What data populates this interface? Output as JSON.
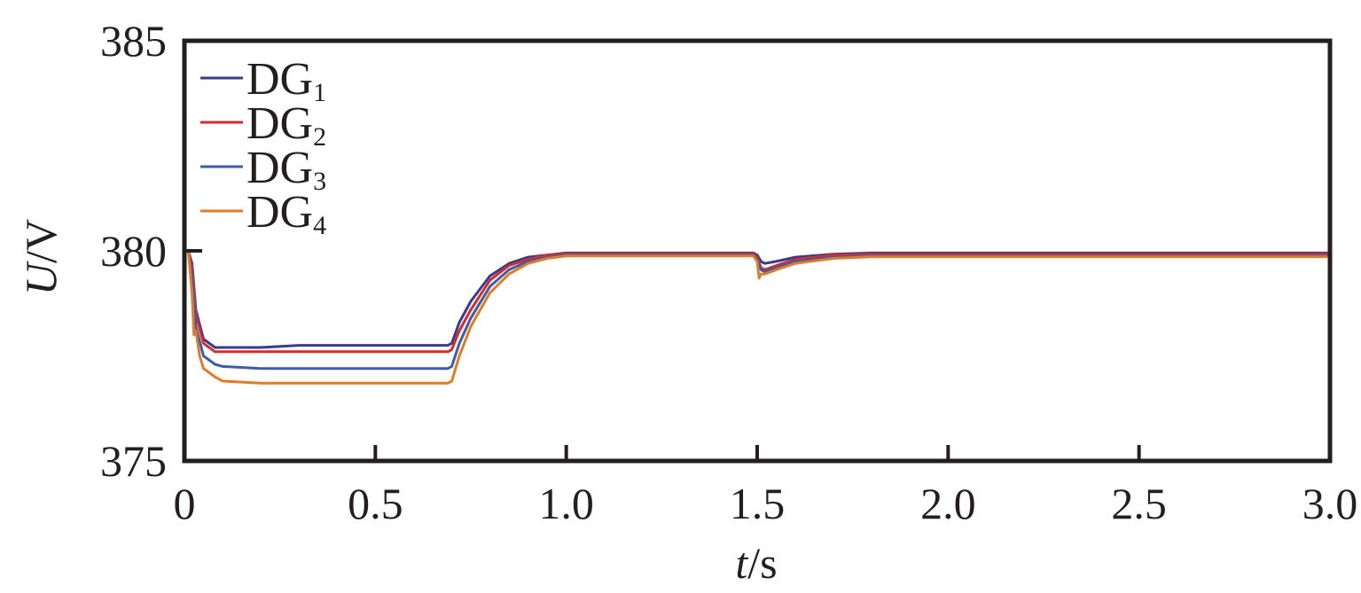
{
  "chart_data": {
    "type": "line",
    "title": "",
    "xlabel": {
      "var": "t",
      "unit": "s"
    },
    "ylabel": {
      "var": "U",
      "unit": "V"
    },
    "xlim": [
      0,
      3.0
    ],
    "ylim": [
      375,
      385
    ],
    "xticks": [
      "0",
      "0.5",
      "1.0",
      "1.5",
      "2.0",
      "2.5",
      "3.0"
    ],
    "yticks": [
      "375",
      "380",
      "385"
    ],
    "legend_position": "top-left",
    "grid": false,
    "series": [
      {
        "name": "DG",
        "subscript": "1",
        "color": "#3a3b8c",
        "x": [
          0,
          0.01,
          0.02,
          0.03,
          0.05,
          0.08,
          0.1,
          0.2,
          0.3,
          0.4,
          0.5,
          0.6,
          0.69,
          0.7,
          0.72,
          0.75,
          0.8,
          0.85,
          0.9,
          0.95,
          1.0,
          1.1,
          1.2,
          1.3,
          1.4,
          1.49,
          1.5,
          1.51,
          1.52,
          1.55,
          1.6,
          1.7,
          1.8,
          2.0,
          2.5,
          3.0
        ],
        "y": [
          380,
          380,
          379.7,
          378.6,
          377.9,
          377.7,
          377.7,
          377.7,
          377.75,
          377.75,
          377.75,
          377.75,
          377.75,
          377.8,
          378.3,
          378.8,
          379.4,
          379.7,
          379.85,
          379.9,
          379.95,
          379.95,
          379.95,
          379.95,
          379.95,
          379.95,
          379.9,
          379.75,
          379.7,
          379.75,
          379.85,
          379.92,
          379.95,
          379.95,
          379.95,
          379.95
        ]
      },
      {
        "name": "DG",
        "subscript": "2",
        "color": "#d62b2b",
        "x": [
          0,
          0.01,
          0.02,
          0.03,
          0.05,
          0.08,
          0.1,
          0.2,
          0.3,
          0.4,
          0.5,
          0.6,
          0.69,
          0.7,
          0.72,
          0.75,
          0.8,
          0.85,
          0.9,
          0.95,
          1.0,
          1.1,
          1.2,
          1.3,
          1.4,
          1.49,
          1.5,
          1.51,
          1.52,
          1.55,
          1.6,
          1.7,
          1.8,
          2.0,
          2.5,
          3.0
        ],
        "y": [
          380,
          380,
          379.6,
          378.5,
          377.8,
          377.6,
          377.6,
          377.6,
          377.6,
          377.6,
          377.6,
          377.6,
          377.6,
          377.65,
          378.1,
          378.6,
          379.3,
          379.65,
          379.8,
          379.9,
          379.93,
          379.93,
          379.93,
          379.93,
          379.93,
          379.93,
          379.85,
          379.6,
          379.55,
          379.65,
          379.8,
          379.9,
          379.92,
          379.92,
          379.92,
          379.92
        ]
      },
      {
        "name": "DG",
        "subscript": "3",
        "color": "#3b5ea7",
        "x": [
          0,
          0.01,
          0.02,
          0.03,
          0.05,
          0.08,
          0.1,
          0.2,
          0.3,
          0.4,
          0.5,
          0.6,
          0.69,
          0.7,
          0.72,
          0.75,
          0.8,
          0.85,
          0.9,
          0.95,
          1.0,
          1.1,
          1.2,
          1.3,
          1.4,
          1.49,
          1.5,
          1.51,
          1.52,
          1.55,
          1.6,
          1.7,
          1.8,
          2.0,
          2.5,
          3.0
        ],
        "y": [
          380,
          380,
          379.4,
          378.2,
          377.5,
          377.3,
          377.25,
          377.2,
          377.2,
          377.2,
          377.2,
          377.2,
          377.2,
          377.25,
          377.8,
          378.4,
          379.15,
          379.55,
          379.75,
          379.85,
          379.9,
          379.9,
          379.9,
          379.9,
          379.9,
          379.9,
          379.8,
          379.55,
          379.5,
          379.6,
          379.75,
          379.85,
          379.88,
          379.88,
          379.88,
          379.88
        ]
      },
      {
        "name": "DG",
        "subscript": "4",
        "color": "#e07b27",
        "x": [
          0,
          0.01,
          0.02,
          0.025,
          0.03,
          0.04,
          0.05,
          0.08,
          0.1,
          0.2,
          0.3,
          0.4,
          0.5,
          0.6,
          0.69,
          0.7,
          0.72,
          0.75,
          0.8,
          0.85,
          0.9,
          0.95,
          1.0,
          1.1,
          1.2,
          1.3,
          1.4,
          1.49,
          1.5,
          1.505,
          1.51,
          1.52,
          1.55,
          1.6,
          1.7,
          1.8,
          2.0,
          2.5,
          3.0
        ],
        "y": [
          380,
          380,
          379.0,
          378.0,
          378.1,
          377.5,
          377.2,
          377.0,
          376.9,
          376.85,
          376.85,
          376.85,
          376.85,
          376.85,
          376.85,
          376.9,
          377.5,
          378.2,
          379.0,
          379.45,
          379.7,
          379.82,
          379.88,
          379.88,
          379.88,
          379.88,
          379.88,
          379.88,
          379.75,
          379.35,
          379.45,
          379.45,
          379.55,
          379.7,
          379.82,
          379.86,
          379.86,
          379.86,
          379.86
        ]
      }
    ]
  }
}
